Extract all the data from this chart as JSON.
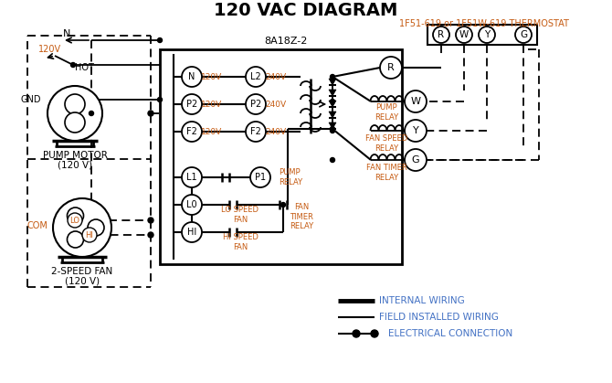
{
  "title": "120 VAC DIAGRAM",
  "title_fontsize": 14,
  "bg_color": "#ffffff",
  "line_color": "#000000",
  "text_color_blue": "#4472c4",
  "text_color_orange": "#c55a11",
  "thermostat_label": "1F51-619 or 1F51W-619 THERMOSTAT",
  "control_box_label": "8A18Z-2",
  "legend_internal": "INTERNAL WIRING",
  "legend_field": "FIELD INSTALLED WIRING",
  "legend_elec": "ELECTRICAL CONNECTION",
  "motor_label1": "PUMP MOTOR",
  "motor_label2": "(120 V)",
  "fan_label1": "2-SPEED FAN",
  "fan_label2": "(120 V)",
  "com_label": "COM",
  "lo_label": "LO",
  "hi_label": "HI",
  "n_label": "N",
  "v120_label": "120V",
  "hot_label": "HOT",
  "gnd_label": "GND"
}
